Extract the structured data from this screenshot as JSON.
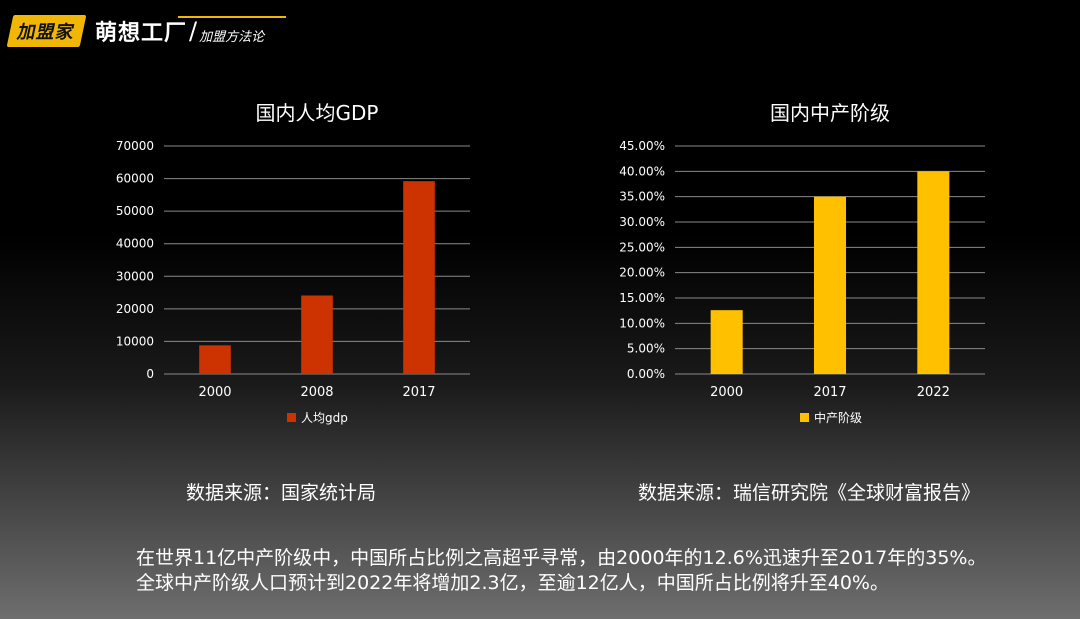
{
  "brand": {
    "logo": "加盟家",
    "title": "萌想工厂",
    "subtitle": "加盟方法论",
    "accent": "#f2b705"
  },
  "chart_data": [
    {
      "type": "bar",
      "title": "国内人均GDP",
      "categories": [
        "2000",
        "2008",
        "2017"
      ],
      "series": [
        {
          "name": "人均gdp",
          "values": [
            8800,
            24100,
            59200
          ],
          "color": "#cc3300"
        }
      ],
      "ylim": [
        0,
        70000
      ],
      "yticks": [
        0,
        10000,
        20000,
        30000,
        40000,
        50000,
        60000,
        70000
      ],
      "ytick_labels": [
        "0",
        "10000",
        "20000",
        "30000",
        "40000",
        "50000",
        "60000",
        "70000"
      ],
      "grid": true,
      "legend": "bottom"
    },
    {
      "type": "bar",
      "title": "国内中产阶级",
      "categories": [
        "2000",
        "2017",
        "2022"
      ],
      "series": [
        {
          "name": "中产阶级",
          "values": [
            12.6,
            35,
            40
          ],
          "color": "#ffc000"
        }
      ],
      "ylim": [
        0,
        45
      ],
      "yticks": [
        0,
        5,
        10,
        15,
        20,
        25,
        30,
        35,
        40,
        45
      ],
      "ytick_labels": [
        "0.00%",
        "5.00%",
        "10.00%",
        "15.00%",
        "20.00%",
        "25.00%",
        "30.00%",
        "35.00%",
        "40.00%",
        "45.00%"
      ],
      "grid": true,
      "legend": "bottom"
    }
  ],
  "sources": {
    "left": "数据来源：国家统计局",
    "right": "数据来源：瑞信研究院《全球财富报告》"
  },
  "summary": {
    "line1": "在世界11亿中产阶级中，中国所占比例之高超乎寻常，由2000年的12.6%迅速升至2017年的35%。",
    "line2": "全球中产阶级人口预计到2022年将增加2.3亿，至逾12亿人，中国所占比例将升至40%。"
  }
}
